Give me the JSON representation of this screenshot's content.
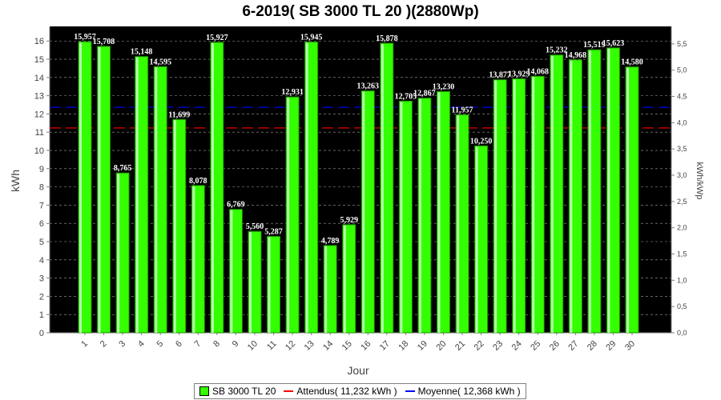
{
  "colors": {
    "plot_bg": "#000000",
    "bar": "#33ff00",
    "bar_edge": "#228800",
    "attendus": "#ff0000",
    "moyenne": "#0000ff",
    "grid": "#a0a0a0"
  },
  "chart_data": {
    "type": "bar",
    "title": "6-2019( SB 3000 TL 20 )(2880Wp)",
    "xlabel": "Jour",
    "ylabel": "kWh",
    "y2label": "kWh/kWp",
    "ylim": [
      0,
      16.8
    ],
    "y2lim": [
      0,
      5.8333
    ],
    "yticks": [
      "0",
      "1",
      "2",
      "3",
      "4",
      "5",
      "6",
      "7",
      "8",
      "9",
      "10",
      "11",
      "12",
      "13",
      "14",
      "15",
      "16"
    ],
    "y2ticks": [
      "0,0",
      "0,5",
      "1,0",
      "1,5",
      "2,0",
      "2,5",
      "3,0",
      "3,5",
      "4,0",
      "4,5",
      "5,0",
      "5,5"
    ],
    "categories": [
      "1",
      "2",
      "3",
      "4",
      "5",
      "6",
      "7",
      "8",
      "9",
      "10",
      "11",
      "12",
      "13",
      "14",
      "15",
      "16",
      "17",
      "18",
      "19",
      "20",
      "21",
      "22",
      "23",
      "24",
      "25",
      "26",
      "27",
      "28",
      "29",
      "30"
    ],
    "series": [
      {
        "name": "SB 3000 TL 20",
        "values": [
          15.957,
          15.708,
          8.765,
          15.148,
          14.595,
          11.699,
          8.078,
          15.927,
          6.769,
          5.56,
          5.287,
          12.931,
          15.945,
          4.789,
          5.929,
          13.263,
          15.878,
          12.705,
          12.867,
          13.23,
          11.957,
          10.25,
          13.877,
          13.929,
          14.068,
          15.232,
          14.968,
          15.519,
          15.623,
          14.58
        ],
        "labels": [
          "15,957",
          "15,708",
          "8,765",
          "15,148",
          "14,595",
          "11,699",
          "8,078",
          "15,927",
          "6,769",
          "5,560",
          "5,287",
          "12,931",
          "15,945",
          "4,789",
          "5,929",
          "13,263",
          "15,878",
          "12,705",
          "12,867",
          "13,230",
          "11,957",
          "10,250",
          "13,877",
          "13,929",
          "14,068",
          "15,232",
          "14,968",
          "15,519",
          "15,623",
          "14,580"
        ]
      }
    ],
    "lines": [
      {
        "name": "Attendus( 11,232 kWh )",
        "value": 11.232
      },
      {
        "name": "Moyenne( 12,368 kWh )",
        "value": 12.368
      }
    ],
    "grid": true,
    "legend": "bottom"
  }
}
